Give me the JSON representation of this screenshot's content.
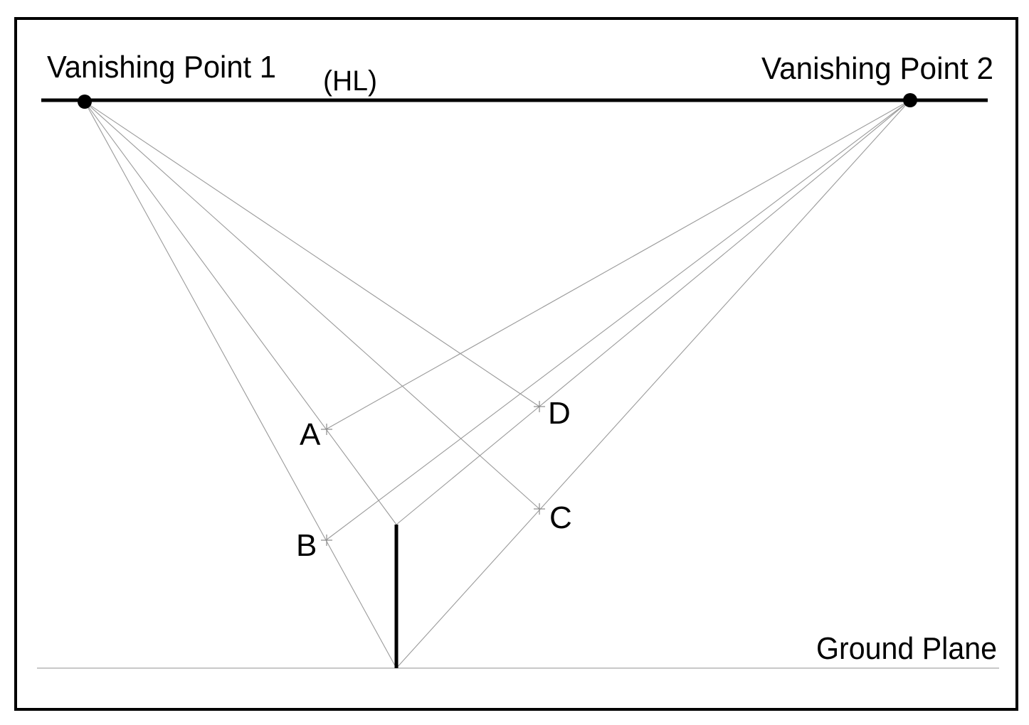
{
  "labels": {
    "vanishing_point_1": "Vanishing Point 1",
    "vanishing_point_2": "Vanishing Point 2",
    "horizon_line": "(HL)",
    "ground_plane": "Ground Plane",
    "point_a": "A",
    "point_b": "B",
    "point_c": "C",
    "point_d": "D"
  },
  "colors": {
    "ink": "#000000",
    "construction_line": "#9a9a9a",
    "ground_line": "#a8a8a8"
  }
}
